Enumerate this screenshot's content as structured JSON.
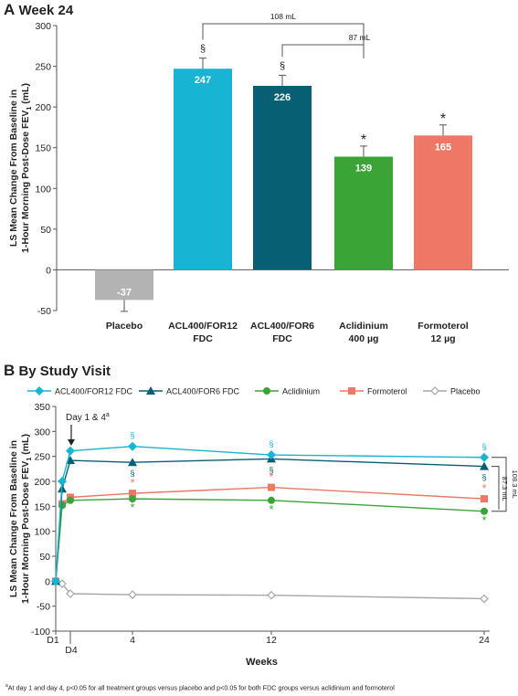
{
  "panels": [
    {
      "letter": "A",
      "title": "Week 24"
    },
    {
      "letter": "B",
      "title": "By Study Visit"
    }
  ],
  "chart_data": [
    {
      "type": "bar",
      "ylabel": "LS Mean Change From Baseline in 1-Hour Morning Post-Dose FEV₁ (mL)",
      "ylabel_lines": [
        "LS Mean Change From Baseline in",
        "1-Hour Morning Post-Dose FEV",
        "1",
        " (mL)"
      ],
      "ylim": [
        -50,
        300
      ],
      "yticks": [
        -50,
        0,
        50,
        100,
        150,
        200,
        250,
        300
      ],
      "categories": [
        [
          "Placebo"
        ],
        [
          "ACL400/FOR12",
          "FDC"
        ],
        [
          "ACL400/FOR6",
          "FDC"
        ],
        [
          "Aclidinium",
          "400 µg"
        ],
        [
          "Formoterol",
          "12 µg"
        ]
      ],
      "values": [
        -37,
        247,
        226,
        139,
        165
      ],
      "errors": [
        14,
        13,
        13,
        13,
        13
      ],
      "colors": [
        "#b3b3b3",
        "#18b4d4",
        "#075f73",
        "#3aa436",
        "#ef7766"
      ],
      "value_labels": [
        "-37",
        "247",
        "226",
        "139",
        "165"
      ],
      "markers": [
        "",
        "§",
        "§",
        "*",
        "*"
      ],
      "brackets": [
        {
          "from": 1,
          "to": 3,
          "label": "108 mL"
        },
        {
          "from": 2,
          "to": 3,
          "label": "87 mL"
        }
      ]
    },
    {
      "type": "line",
      "xlabel": "Weeks",
      "ylabel": "LS Mean Change From Baseline in 1-Hour Morning Post-Dose FEV₁ (mL)",
      "ylabel_lines": [
        "LS Mean Change From Baseline in",
        "1-Hour Morning Post-Dose FEV",
        "1",
        " (mL)"
      ],
      "ylim": [
        -100,
        350
      ],
      "yticks": [
        -100,
        -50,
        0,
        50,
        100,
        150,
        200,
        250,
        300,
        350
      ],
      "xlim": [
        0,
        24
      ],
      "xticks": [
        {
          "x": 0,
          "label": "D1"
        },
        {
          "x": 4,
          "label": "4"
        },
        {
          "x": 12,
          "label": "12"
        },
        {
          "x": 24,
          "label": "24"
        }
      ],
      "xtick_sub": {
        "x": 0.57,
        "label": "D4"
      },
      "x": [
        0,
        0.14,
        0.57,
        4,
        12,
        24
      ],
      "series": [
        {
          "name": "ACL400/FOR12 FDC",
          "marker": "diamond",
          "color": "#18b4d4",
          "values": [
            0,
            200,
            261,
            270,
            253,
            248
          ]
        },
        {
          "name": "ACL400/FOR6 FDC",
          "marker": "triangle",
          "color": "#075f73",
          "values": [
            0,
            185,
            242,
            238,
            245,
            230
          ]
        },
        {
          "name": "Aclidinium",
          "marker": "circle",
          "color": "#3aa436",
          "values": [
            0,
            152,
            162,
            165,
            162,
            140
          ]
        },
        {
          "name": "Formoterol",
          "marker": "square",
          "color": "#ef7766",
          "values": [
            0,
            155,
            168,
            176,
            188,
            165
          ]
        },
        {
          "name": "Placebo",
          "marker": "diamond-open",
          "color": "#a6a6a6",
          "values": [
            0,
            -5,
            -25,
            -27,
            -28,
            -35
          ]
        }
      ],
      "annotation": {
        "text": "Day 1 & 4",
        "sup": "a"
      },
      "brackets": [
        {
          "label": "108.3 mL"
        },
        {
          "label": "87.3 mL"
        }
      ]
    }
  ],
  "footnote": {
    "sup": "a",
    "text": "At day 1 and day 4, p<0.05 for all treatment groups versus placebo and p<0.05 for both FDC groups versus aclidinium and formoterol"
  }
}
